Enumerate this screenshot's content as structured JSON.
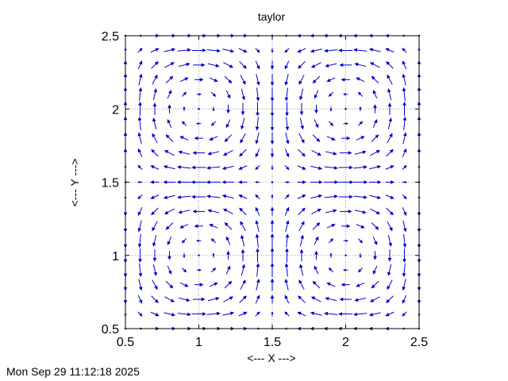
{
  "chart_data": {
    "type": "vector-field",
    "title": "taylor",
    "xlabel": "<--- X --->",
    "ylabel": "<--- Y --->",
    "xlim": [
      0.5,
      2.5
    ],
    "ylim": [
      0.5,
      2.5
    ],
    "xticks": [
      0.5,
      1,
      1.5,
      2,
      2.5
    ],
    "yticks": [
      0.5,
      1,
      1.5,
      2,
      2.5
    ],
    "xtick_labels": [
      "0.5",
      "1",
      "1.5",
      "2",
      "2.5"
    ],
    "ytick_labels": [
      "0.5",
      "1",
      "1.5",
      "2",
      "2.5"
    ],
    "grid": true,
    "field": {
      "x_range": [
        0.5,
        2.5
      ],
      "y_range": [
        0.5,
        2.5
      ],
      "nx": 21,
      "ny": 21,
      "u": "-cos(pi*x)*sin(pi*y)",
      "v": "sin(pi*x)*cos(pi*y)",
      "max_arrow_length": 0.1
    },
    "colors": {
      "arrows": "#0000cc",
      "grid": "#999999",
      "axes": "#000000"
    }
  },
  "footer": {
    "timestamp": "Mon Sep 29 11:12:18 2025"
  }
}
